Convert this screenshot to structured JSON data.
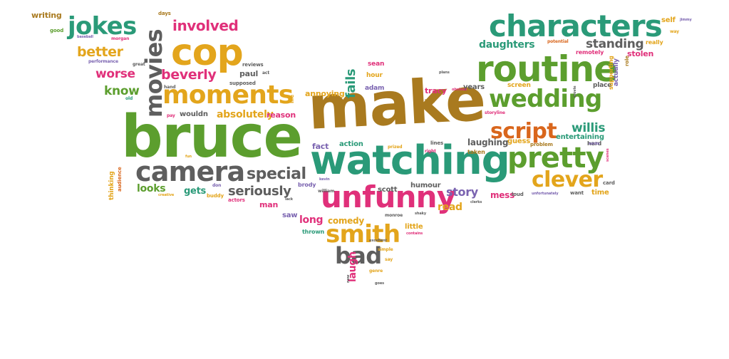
{
  "colors": {
    "green": "#5c9e2e",
    "brown": "#a97a1f",
    "teal": "#2a9a78",
    "gray": "#5e5e5e",
    "magenta": "#e0307a",
    "gold": "#e3a51c",
    "orange": "#d9661c",
    "purple": "#7a63b0"
  },
  "words": [
    "bruce",
    "make",
    "watching",
    "routine",
    "characters",
    "cop",
    "camera",
    "moments",
    "wedding",
    "pretty",
    "unfunny",
    "script",
    "jokes",
    "movies",
    "smith",
    "bad",
    "clever",
    "special",
    "involved",
    "beverly",
    "better",
    "seriously",
    "worse",
    "fails",
    "know",
    "willis",
    "daughters",
    "standing",
    "absolutely",
    "laughing",
    "story",
    "looks",
    "annoying",
    "comedy",
    "long",
    "read",
    "gets",
    "mess",
    "humour",
    "little",
    "laugh",
    "reason",
    "tracy",
    "fact",
    "action",
    "scott",
    "entertaining",
    "guess",
    "time",
    "stolen",
    "remotely",
    "self",
    "really",
    "writing",
    "good",
    "paul",
    "man",
    "saw",
    "thrown",
    "brody",
    "william",
    "sean",
    "hour",
    "adam",
    "years",
    "screen",
    "place",
    "actually",
    "role",
    "supporting",
    "hard",
    "lines",
    "taken",
    "problem",
    "card",
    "want",
    "loud",
    "unfortunately",
    "audience",
    "thinking",
    "creative",
    "fun",
    "pay",
    "wouldn",
    "supposed",
    "buddy",
    "actors",
    "don",
    "days",
    "morgan",
    "baseball",
    "performance",
    "great",
    "old",
    "hand",
    "reviews",
    "act",
    "life",
    "kind",
    "right",
    "prized",
    "storyline",
    "potential",
    "jimmy",
    "way",
    "genre",
    "simple",
    "say",
    "new",
    "excellent",
    "contains",
    "shaky",
    "monroe",
    "kevin",
    "lack",
    "clerks",
    "plans",
    "obvious",
    "goes",
    "movie",
    "sucks",
    "scenes"
  ]
}
